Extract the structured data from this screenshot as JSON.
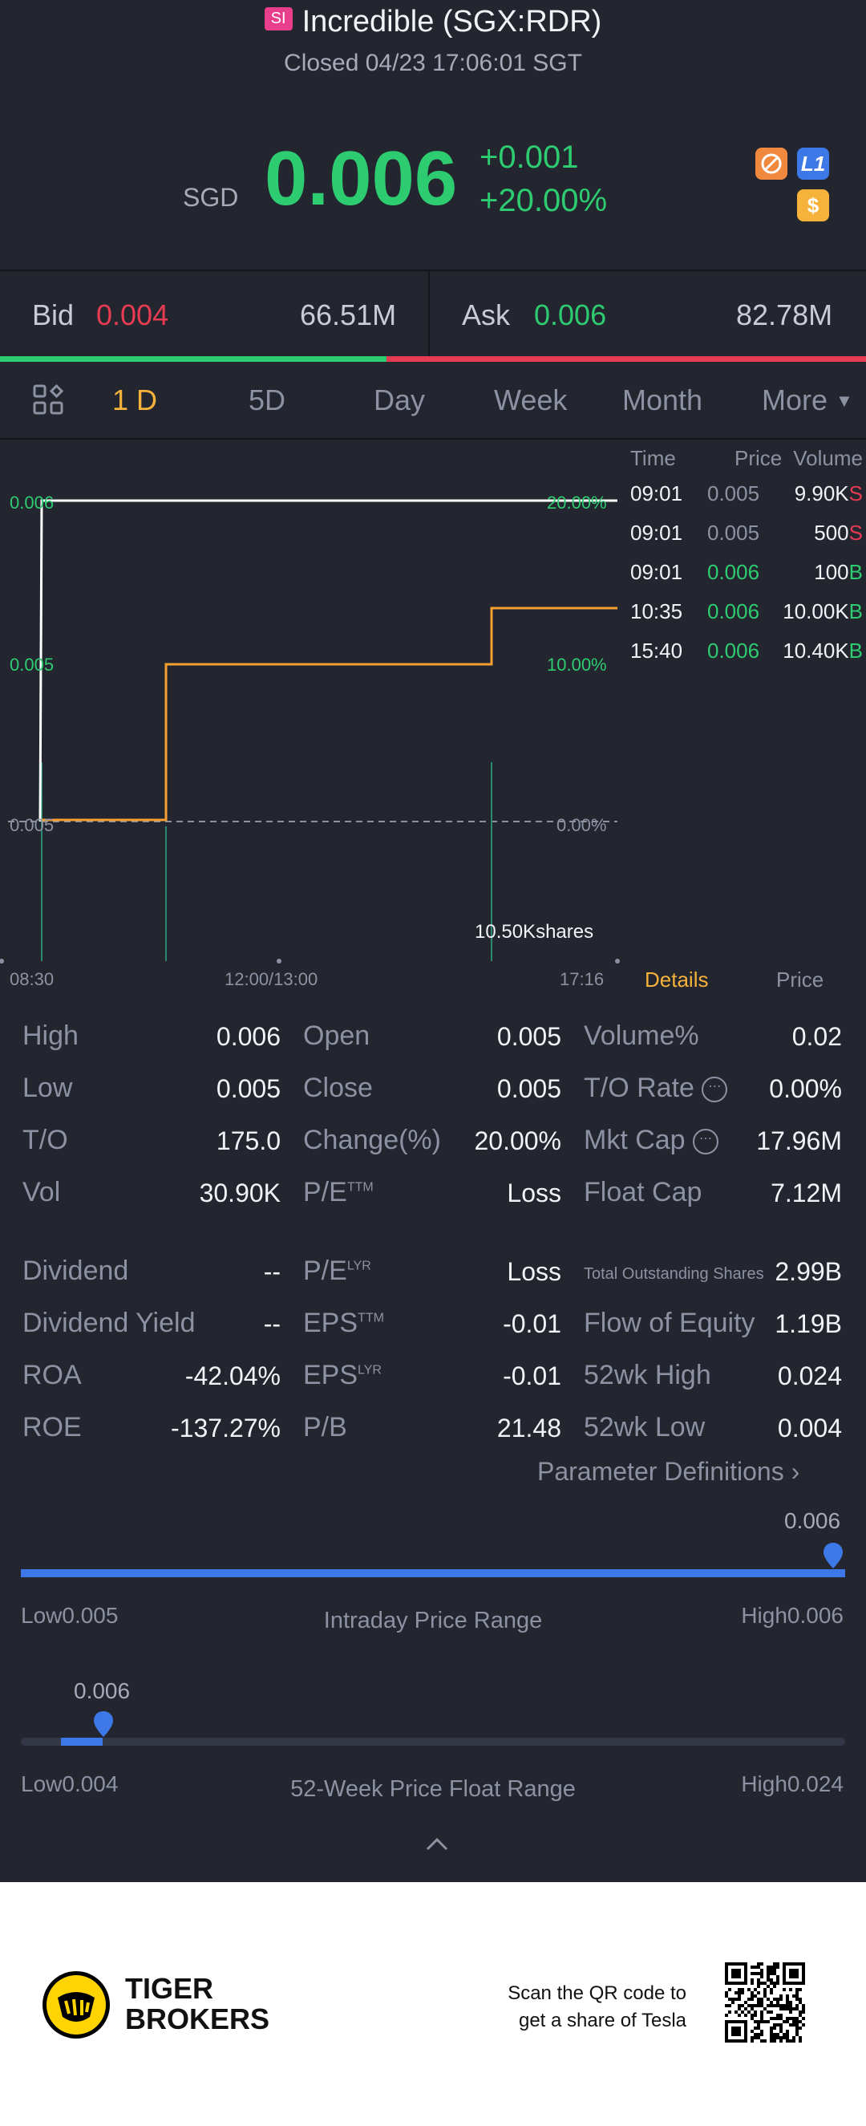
{
  "header": {
    "badge": "SI",
    "title": "Incredible (SGX:RDR)",
    "status": "Closed 04/23 17:06:01 SGT"
  },
  "quote": {
    "currency": "SGD",
    "price": "0.006",
    "change_abs": "+0.001",
    "change_pct": "+20.00%",
    "icons": [
      "no-shorting-icon",
      "level1-icon",
      "dollar-icon"
    ],
    "icon_colors": {
      "no-shorting": "#f0883e",
      "level1": "#3d79e6",
      "dollar": "#f6b23a"
    },
    "level_label": "L1",
    "dollar_label": "$"
  },
  "bid_ask": {
    "bid_label": "Bid",
    "bid_price": "0.004",
    "bid_volume": "66.51M",
    "ask_label": "Ask",
    "ask_price": "0.006",
    "ask_volume": "82.78M"
  },
  "tabs": [
    "1 D",
    "5D",
    "Day",
    "Week",
    "Month",
    "More"
  ],
  "active_tab": "1 D",
  "chart": {
    "y_left": [
      "0.006",
      "0.005",
      "0.005"
    ],
    "y_right": [
      "20.00%",
      "10.00%",
      "0.00%"
    ],
    "x_labels": [
      "08:30",
      "12:00/13:00",
      "17:16"
    ],
    "volume_label": "10.50Kshares",
    "details_tab": "Details",
    "price_tab": "Price"
  },
  "chart_data": {
    "type": "line",
    "x": [
      "08:30",
      "09:01",
      "10:35",
      "15:40",
      "17:16"
    ],
    "series": [
      {
        "values": [
          0.005,
          0.005,
          0.0055,
          0.0057,
          0.0057
        ]
      },
      {
        "values": [
          0.006,
          0.006,
          0.006,
          0.006,
          0.006
        ]
      }
    ],
    "ylim": [
      0.0045,
      0.0065
    ]
  },
  "trades": {
    "headers": {
      "time": "Time",
      "price": "Price",
      "volume": "Volume"
    },
    "rows": [
      {
        "time": "09:01",
        "price": "0.005",
        "volume": "9.90K",
        "side": "S"
      },
      {
        "time": "09:01",
        "price": "0.005",
        "volume": "500",
        "side": "S"
      },
      {
        "time": "09:01",
        "price": "0.006",
        "volume": "100",
        "side": "B"
      },
      {
        "time": "10:35",
        "price": "0.006",
        "volume": "10.00K",
        "side": "B"
      },
      {
        "time": "15:40",
        "price": "0.006",
        "volume": "10.40K",
        "side": "B"
      }
    ]
  },
  "stats": {
    "col1": [
      {
        "label": "High",
        "value": "0.006"
      },
      {
        "label": "Low",
        "value": "0.005"
      },
      {
        "label": "T/O",
        "value": "175.0"
      },
      {
        "label": "Vol",
        "value": "30.90K"
      }
    ],
    "col2": [
      {
        "label": "Open",
        "value": "0.005"
      },
      {
        "label": "Close",
        "value": "0.005"
      },
      {
        "label": "Change(%)",
        "value": "20.00%"
      },
      {
        "label": "P/E",
        "sup": "TTM",
        "value": "Loss"
      }
    ],
    "col3": [
      {
        "label": "Volume%",
        "value": "0.02"
      },
      {
        "label": "T/O Rate",
        "value": "0.00%"
      },
      {
        "label": "Mkt Cap",
        "value": "17.96M"
      },
      {
        "label": "Float Cap",
        "value": "7.12M"
      }
    ],
    "col1b": [
      {
        "label": "Dividend",
        "value": "--"
      },
      {
        "label": "Dividend Yield",
        "value": "--"
      },
      {
        "label": "ROA",
        "value": "-42.04%"
      },
      {
        "label": "ROE",
        "value": "-137.27%"
      }
    ],
    "col2b": [
      {
        "label": "P/E",
        "sup": "LYR",
        "value": "Loss"
      },
      {
        "label": "EPS",
        "sup": "TTM",
        "value": "-0.01"
      },
      {
        "label": "EPS",
        "sup": "LYR",
        "value": "-0.01"
      },
      {
        "label": "P/B",
        "value": "21.48"
      }
    ],
    "col3b": [
      {
        "label": "Total Outstanding Shares",
        "value": "2.99B"
      },
      {
        "label": "Flow of Equity",
        "value": "1.19B"
      },
      {
        "label": "52wk High",
        "value": "0.024"
      },
      {
        "label": "52wk Low",
        "value": "0.004"
      }
    ],
    "param_link": "Parameter Definitions"
  },
  "intraday_range": {
    "current": "0.006",
    "low_label": "Low",
    "low": "0.005",
    "high_label": "High",
    "high": "0.006",
    "title": "Intraday Price Range",
    "position": 1.0
  },
  "week52_range": {
    "current": "0.006",
    "low_label": "Low",
    "low": "0.004",
    "high_label": "High",
    "high": "0.024",
    "title": "52-Week Price Float Range",
    "position": 0.1
  },
  "footer": {
    "brand_line1": "TIGER",
    "brand_line2": "BROKERS",
    "promo_line1": "Scan the QR code to",
    "promo_line2": "get a share of Tesla"
  },
  "colors": {
    "up": "#2ecc71",
    "down": "#e63b52",
    "accent": "#f6b23a",
    "range": "#3d79e6",
    "background": "#23252f"
  }
}
